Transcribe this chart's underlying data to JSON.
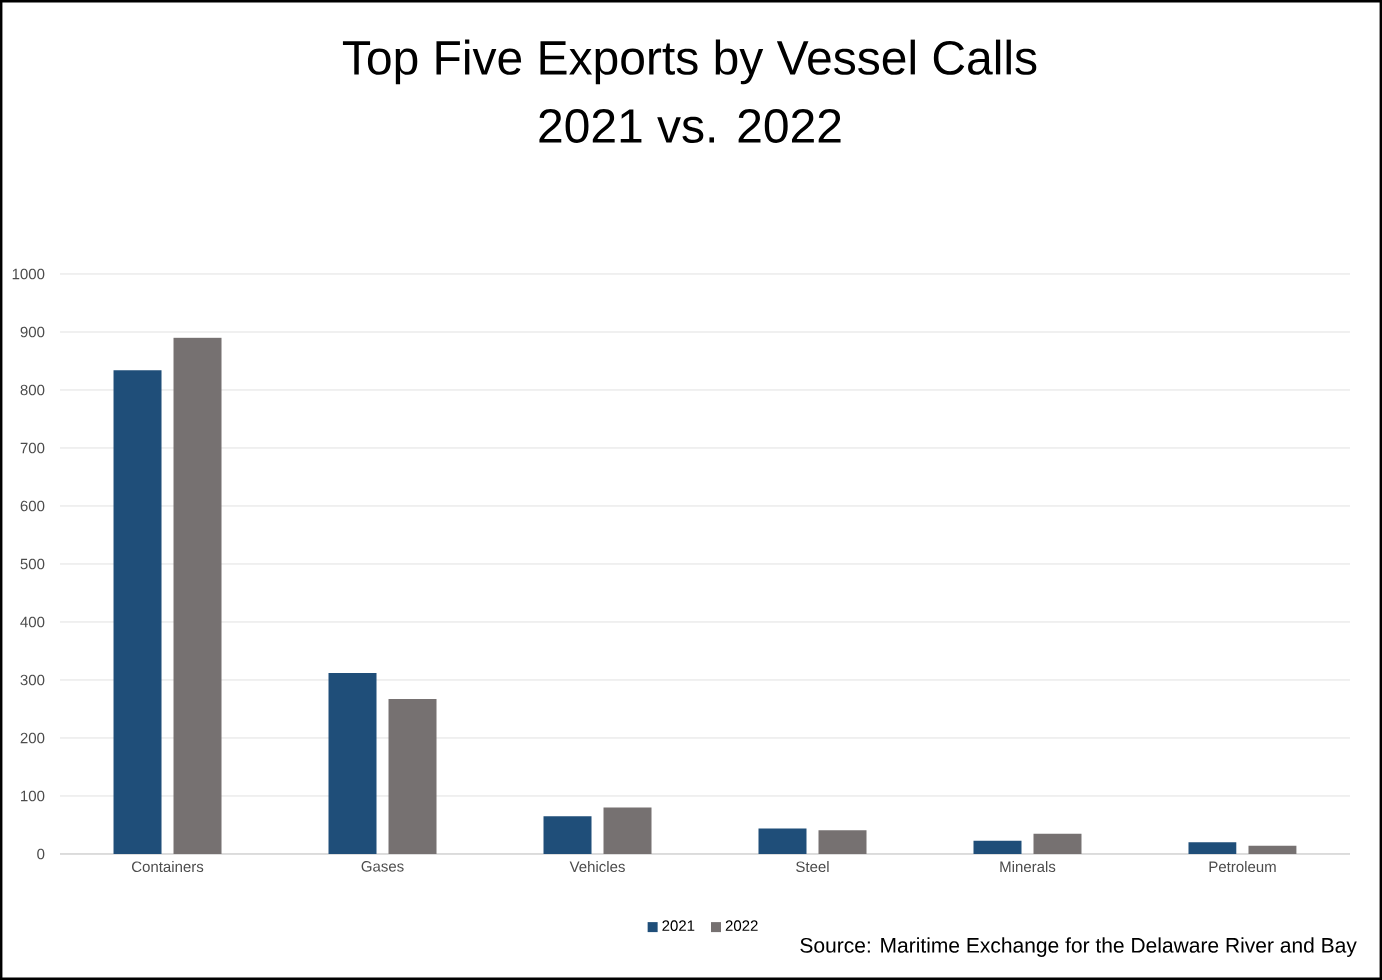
{
  "chart_data": {
    "type": "bar",
    "title": "Top Five Exports by Vessel Calls",
    "subtitle": "2021 vs. 2022",
    "categories": [
      "Containers",
      "Gases",
      "Vehicles",
      "Steel",
      "Minerals",
      "Petroleum"
    ],
    "series": [
      {
        "name": "2021",
        "color": "#1f4e79",
        "values": [
          834,
          312,
          65,
          44,
          23,
          20
        ]
      },
      {
        "name": "2022",
        "color": "#767171",
        "values": [
          890,
          267,
          80,
          41,
          35,
          14
        ]
      }
    ],
    "ylim": [
      0,
      1000
    ],
    "yticks": [
      0,
      100,
      200,
      300,
      400,
      500,
      600,
      700,
      800,
      900,
      1000
    ],
    "grid": "y",
    "legend": "bottom",
    "annotations": [
      "Source: Maritime Exchange for the Delaware River and Bay"
    ]
  }
}
